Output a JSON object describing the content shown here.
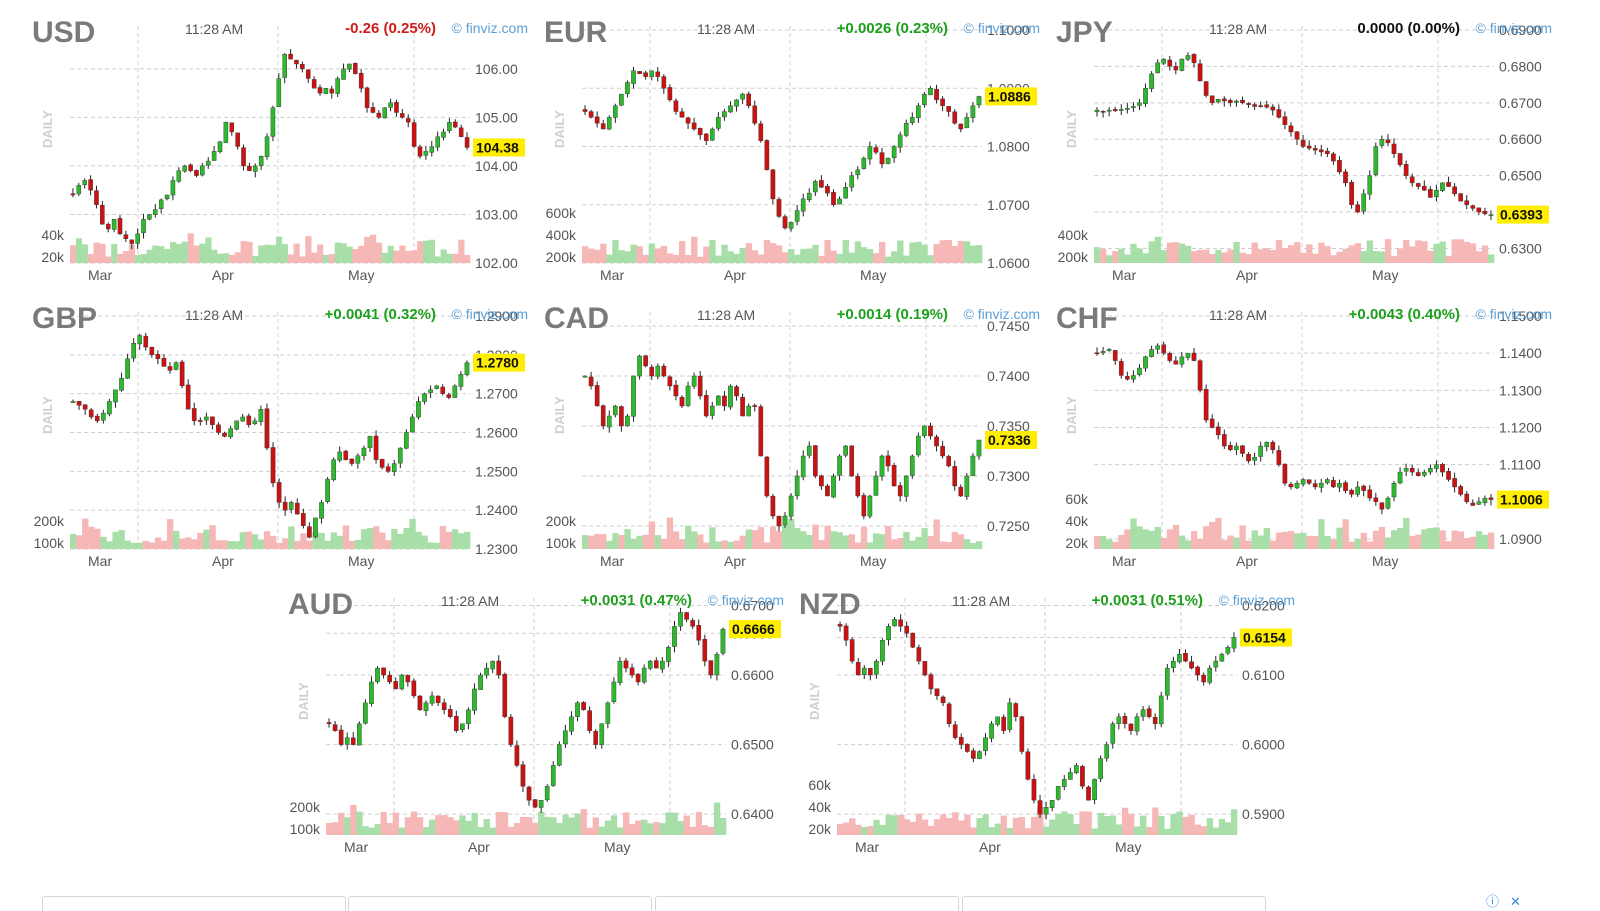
{
  "panels": [
    {
      "name": "USD",
      "time": "11:28 AM",
      "change": "-0.26 (0.25%)",
      "direction": "down",
      "credit": "© finviz.com",
      "timeframe": "DAILY"
    },
    {
      "name": "EUR",
      "time": "11:28 AM",
      "change": "+0.0026 (0.23%)",
      "direction": "up",
      "credit": "© finviz.com",
      "timeframe": "DAILY"
    },
    {
      "name": "JPY",
      "time": "11:28 AM",
      "change": "0.0000 (0.00%)",
      "direction": "flat",
      "credit": "© finviz.com",
      "timeframe": "DAILY"
    },
    {
      "name": "GBP",
      "time": "11:28 AM",
      "change": "+0.0041 (0.32%)",
      "direction": "up",
      "credit": "© finviz.com",
      "timeframe": "DAILY"
    },
    {
      "name": "CAD",
      "time": "11:28 AM",
      "change": "+0.0014 (0.19%)",
      "direction": "up",
      "credit": "© finviz.com",
      "timeframe": "DAILY"
    },
    {
      "name": "CHF",
      "time": "11:28 AM",
      "change": "+0.0043 (0.40%)",
      "direction": "up",
      "credit": "© finviz.com",
      "timeframe": "DAILY"
    },
    {
      "name": "AUD",
      "time": "11:28 AM",
      "change": "+0.0031 (0.47%)",
      "direction": "up",
      "credit": "© finviz.com",
      "timeframe": "DAILY"
    },
    {
      "name": "NZD",
      "time": "11:28 AM",
      "change": "+0.0031 (0.51%)",
      "direction": "up",
      "credit": "© finviz.com",
      "timeframe": "DAILY"
    }
  ],
  "colors": {
    "up": "#1ca01c",
    "down": "#d11a1a",
    "flat": "#111111",
    "up_candle": "#2db92d",
    "down_candle": "#cc1111",
    "up_volume": "#a8dfa8",
    "down_volume": "#f6b7b7",
    "last_price_bg": "#ffee00",
    "grid": "#cfcfcf"
  },
  "chart_data": [
    {
      "type": "candlestick",
      "title": "USD",
      "x_ticks": [
        "Mar",
        "Apr",
        "May"
      ],
      "y_ticks": [
        106.0,
        105.0,
        104.0,
        103.0,
        102.0
      ],
      "ylim": [
        102.0,
        106.8
      ],
      "last_price": "104.38",
      "last_value": 104.38,
      "volume_ticks": [
        "40k",
        "20k"
      ],
      "close": [
        103.4,
        103.6,
        103.7,
        103.5,
        103.2,
        102.8,
        102.7,
        102.9,
        102.6,
        102.5,
        102.4,
        102.6,
        102.9,
        103.0,
        103.1,
        103.3,
        103.4,
        103.7,
        103.9,
        104.0,
        103.9,
        103.8,
        104.0,
        104.1,
        104.3,
        104.5,
        104.9,
        104.7,
        104.4,
        104.0,
        103.9,
        104.0,
        104.2,
        104.6,
        105.2,
        105.8,
        106.3,
        106.2,
        106.1,
        106.0,
        105.8,
        105.6,
        105.5,
        105.6,
        105.5,
        105.8,
        106.0,
        106.1,
        105.9,
        105.6,
        105.2,
        105.1,
        105.0,
        105.2,
        105.3,
        105.1,
        105.0,
        104.9,
        104.4,
        104.2,
        104.3,
        104.4,
        104.6,
        104.7,
        104.9,
        104.8,
        104.6,
        104.38
      ]
    },
    {
      "type": "candlestick",
      "title": "EUR",
      "x_ticks": [
        "Mar",
        "Apr",
        "May"
      ],
      "y_ticks": [
        1.1,
        1.09,
        1.08,
        1.07,
        1.06
      ],
      "ylim": [
        1.06,
        1.1
      ],
      "last_price": "1.0886",
      "last_value": 1.0886,
      "volume_ticks": [
        "600k",
        "400k",
        "200k"
      ],
      "close": [
        1.086,
        1.085,
        1.084,
        1.083,
        1.085,
        1.087,
        1.089,
        1.091,
        1.093,
        1.0925,
        1.092,
        1.093,
        1.092,
        1.09,
        1.088,
        1.086,
        1.085,
        1.084,
        1.083,
        1.082,
        1.081,
        1.083,
        1.085,
        1.086,
        1.087,
        1.088,
        1.089,
        1.087,
        1.084,
        1.081,
        1.076,
        1.071,
        1.068,
        1.066,
        1.067,
        1.069,
        1.071,
        1.072,
        1.074,
        1.073,
        1.072,
        1.07,
        1.071,
        1.073,
        1.075,
        1.076,
        1.078,
        1.08,
        1.079,
        1.077,
        1.078,
        1.08,
        1.082,
        1.084,
        1.085,
        1.087,
        1.089,
        1.09,
        1.088,
        1.087,
        1.086,
        1.084,
        1.083,
        1.085,
        1.087,
        1.0886
      ]
    },
    {
      "type": "candlestick",
      "title": "JPY",
      "x_ticks": [
        "Mar",
        "Apr",
        "May"
      ],
      "y_ticks": [
        0.69,
        0.68,
        0.67,
        0.66,
        0.65,
        0.64,
        0.63
      ],
      "ylim": [
        0.626,
        0.69
      ],
      "last_price": "0.6393",
      "last_value": 0.6393,
      "volume_ticks": [
        "400k",
        "200k"
      ],
      "close": [
        0.668,
        0.6675,
        0.668,
        0.6678,
        0.6682,
        0.6685,
        0.669,
        0.67,
        0.674,
        0.678,
        0.681,
        0.682,
        0.68,
        0.679,
        0.682,
        0.683,
        0.681,
        0.676,
        0.672,
        0.67,
        0.671,
        0.6705,
        0.67,
        0.6705,
        0.67,
        0.6695,
        0.669,
        0.6692,
        0.6688,
        0.668,
        0.666,
        0.664,
        0.662,
        0.66,
        0.658,
        0.6575,
        0.657,
        0.6565,
        0.656,
        0.654,
        0.651,
        0.648,
        0.642,
        0.64,
        0.645,
        0.65,
        0.658,
        0.66,
        0.659,
        0.656,
        0.653,
        0.65,
        0.648,
        0.647,
        0.646,
        0.644,
        0.646,
        0.648,
        0.647,
        0.645,
        0.643,
        0.642,
        0.641,
        0.64,
        0.6395,
        0.6393
      ]
    },
    {
      "type": "candlestick",
      "title": "GBP",
      "x_ticks": [
        "Mar",
        "Apr",
        "May"
      ],
      "y_ticks": [
        1.29,
        1.28,
        1.27,
        1.26,
        1.25,
        1.24,
        1.23
      ],
      "ylim": [
        1.23,
        1.29
      ],
      "last_price": "1.2780",
      "last_value": 1.278,
      "volume_ticks": [
        "200k",
        "100k"
      ],
      "close": [
        1.268,
        1.267,
        1.266,
        1.264,
        1.263,
        1.265,
        1.268,
        1.271,
        1.274,
        1.279,
        1.283,
        1.285,
        1.282,
        1.28,
        1.279,
        1.277,
        1.276,
        1.278,
        1.272,
        1.266,
        1.263,
        1.263,
        1.264,
        1.262,
        1.26,
        1.259,
        1.261,
        1.263,
        1.264,
        1.262,
        1.263,
        1.266,
        1.256,
        1.247,
        1.242,
        1.24,
        1.242,
        1.239,
        1.236,
        1.233,
        1.238,
        1.242,
        1.248,
        1.253,
        1.255,
        1.253,
        1.252,
        1.254,
        1.256,
        1.259,
        1.253,
        1.251,
        1.25,
        1.252,
        1.256,
        1.26,
        1.264,
        1.268,
        1.27,
        1.271,
        1.272,
        1.27,
        1.269,
        1.272,
        1.275,
        1.278
      ]
    },
    {
      "type": "candlestick",
      "title": "CAD",
      "x_ticks": [
        "Mar",
        "Apr",
        "May"
      ],
      "y_ticks": [
        0.745,
        0.74,
        0.735,
        0.73,
        0.725
      ],
      "ylim": [
        0.7227,
        0.746
      ],
      "last_price": "0.7336",
      "last_value": 0.7336,
      "volume_ticks": [
        "200k",
        "100k"
      ],
      "close": [
        0.74,
        0.739,
        0.737,
        0.735,
        0.736,
        0.737,
        0.735,
        0.736,
        0.74,
        0.742,
        0.741,
        0.74,
        0.741,
        0.74,
        0.739,
        0.738,
        0.737,
        0.739,
        0.74,
        0.738,
        0.736,
        0.737,
        0.738,
        0.737,
        0.739,
        0.738,
        0.736,
        0.737,
        0.737,
        0.732,
        0.728,
        0.726,
        0.725,
        0.726,
        0.728,
        0.73,
        0.732,
        0.733,
        0.73,
        0.729,
        0.728,
        0.73,
        0.732,
        0.733,
        0.73,
        0.728,
        0.726,
        0.728,
        0.73,
        0.732,
        0.731,
        0.729,
        0.728,
        0.73,
        0.732,
        0.734,
        0.735,
        0.734,
        0.733,
        0.732,
        0.731,
        0.729,
        0.728,
        0.73,
        0.732,
        0.7336
      ]
    },
    {
      "type": "candlestick",
      "title": "CHF",
      "x_ticks": [
        "Mar",
        "Apr",
        "May"
      ],
      "y_ticks": [
        1.15,
        1.14,
        1.13,
        1.12,
        1.11,
        1.09
      ],
      "ylim": [
        1.0873,
        1.15
      ],
      "last_price": "1.1006",
      "last_value": 1.1006,
      "volume_ticks": [
        "60k",
        "40k",
        "20k"
      ],
      "close": [
        1.14,
        1.1405,
        1.141,
        1.138,
        1.134,
        1.133,
        1.134,
        1.136,
        1.139,
        1.141,
        1.142,
        1.14,
        1.138,
        1.137,
        1.139,
        1.14,
        1.138,
        1.13,
        1.122,
        1.12,
        1.118,
        1.115,
        1.114,
        1.115,
        1.113,
        1.111,
        1.112,
        1.115,
        1.116,
        1.114,
        1.11,
        1.105,
        1.104,
        1.105,
        1.106,
        1.105,
        1.104,
        1.105,
        1.106,
        1.104,
        1.105,
        1.103,
        1.102,
        1.104,
        1.103,
        1.101,
        1.1,
        1.098,
        1.101,
        1.105,
        1.108,
        1.109,
        1.108,
        1.107,
        1.108,
        1.109,
        1.11,
        1.108,
        1.106,
        1.104,
        1.102,
        1.1,
        1.099,
        1.1,
        1.101,
        1.1006
      ]
    },
    {
      "type": "candlestick",
      "title": "AUD",
      "x_ticks": [
        "Mar",
        "Apr",
        "May"
      ],
      "y_ticks": [
        0.67,
        0.666,
        0.66,
        0.65,
        0.64
      ],
      "ylim": [
        0.637,
        0.6705
      ],
      "last_price": "0.6666",
      "last_value": 0.6666,
      "volume_ticks": [
        "200k",
        "100k"
      ],
      "close": [
        0.653,
        0.652,
        0.65,
        0.651,
        0.65,
        0.653,
        0.656,
        0.659,
        0.661,
        0.66,
        0.659,
        0.658,
        0.66,
        0.659,
        0.657,
        0.655,
        0.656,
        0.657,
        0.656,
        0.655,
        0.654,
        0.652,
        0.653,
        0.655,
        0.658,
        0.66,
        0.661,
        0.662,
        0.66,
        0.654,
        0.65,
        0.647,
        0.644,
        0.642,
        0.641,
        0.642,
        0.644,
        0.647,
        0.65,
        0.652,
        0.654,
        0.656,
        0.655,
        0.652,
        0.65,
        0.653,
        0.656,
        0.659,
        0.662,
        0.661,
        0.66,
        0.659,
        0.661,
        0.662,
        0.661,
        0.662,
        0.664,
        0.667,
        0.669,
        0.668,
        0.667,
        0.665,
        0.662,
        0.66,
        0.663,
        0.6666
      ]
    },
    {
      "type": "candlestick",
      "title": "NZD",
      "x_ticks": [
        "Mar",
        "Apr",
        "May"
      ],
      "y_ticks": [
        0.62,
        0.6154,
        0.61,
        0.6,
        0.59
      ],
      "ylim": [
        0.587,
        0.6205
      ],
      "last_price": "0.6154",
      "last_value": 0.6154,
      "volume_ticks": [
        "60k",
        "40k",
        "20k"
      ],
      "close": [
        0.617,
        0.615,
        0.612,
        0.61,
        0.611,
        0.61,
        0.612,
        0.615,
        0.617,
        0.618,
        0.617,
        0.616,
        0.614,
        0.612,
        0.61,
        0.608,
        0.607,
        0.606,
        0.603,
        0.601,
        0.6,
        0.599,
        0.598,
        0.599,
        0.601,
        0.603,
        0.604,
        0.602,
        0.606,
        0.604,
        0.599,
        0.595,
        0.592,
        0.59,
        0.591,
        0.592,
        0.594,
        0.595,
        0.596,
        0.597,
        0.594,
        0.592,
        0.595,
        0.598,
        0.6,
        0.603,
        0.604,
        0.603,
        0.602,
        0.604,
        0.605,
        0.604,
        0.603,
        0.607,
        0.611,
        0.612,
        0.613,
        0.612,
        0.611,
        0.61,
        0.609,
        0.611,
        0.612,
        0.613,
        0.614,
        0.6154
      ]
    }
  ]
}
